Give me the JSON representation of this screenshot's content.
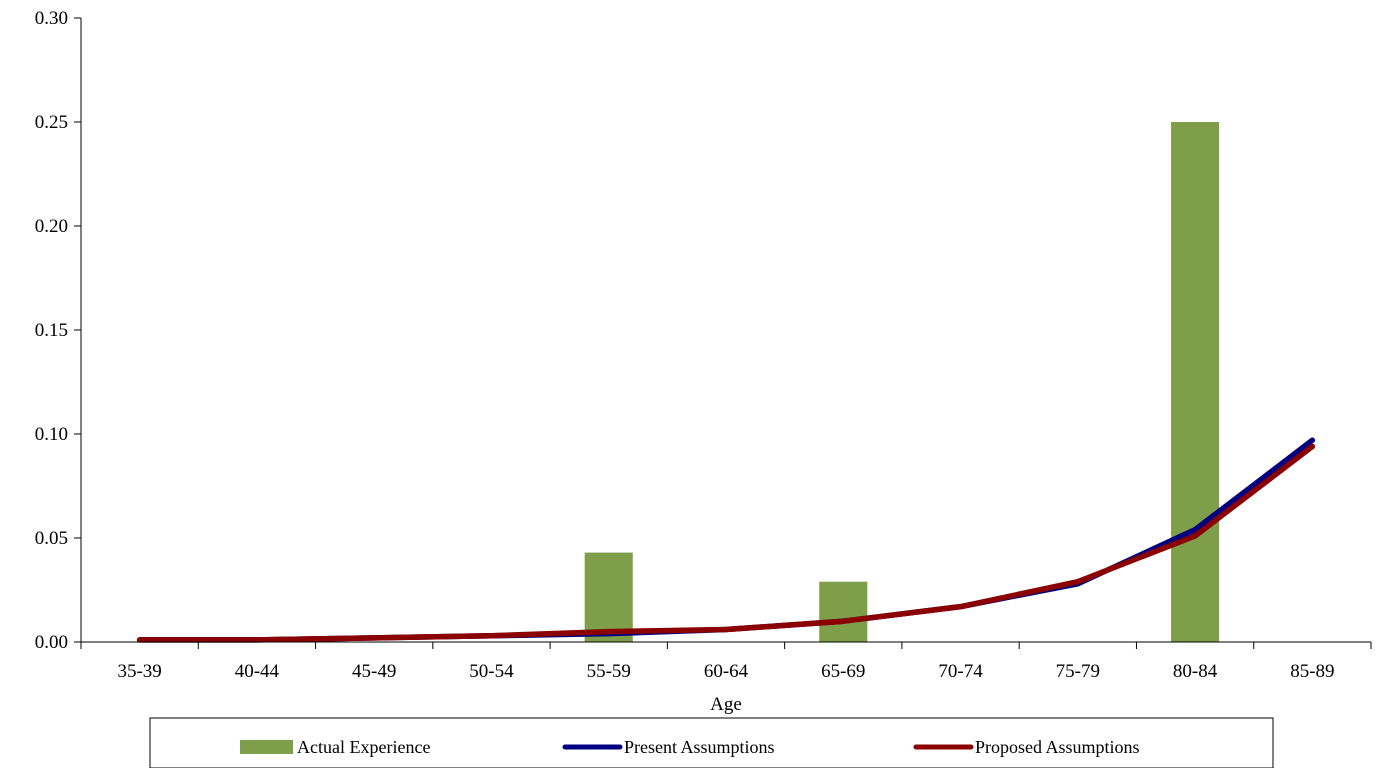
{
  "chart_data": {
    "type": "bar",
    "title": "",
    "xlabel": "Age",
    "ylabel": "",
    "categories": [
      "35-39",
      "40-44",
      "45-49",
      "50-54",
      "55-59",
      "60-64",
      "65-69",
      "70-74",
      "75-79",
      "80-84",
      "85-89"
    ],
    "ylim": [
      0,
      0.3
    ],
    "yticks": [
      "0.00",
      "0.05",
      "0.10",
      "0.15",
      "0.20",
      "0.25",
      "0.30"
    ],
    "grid": false,
    "legend_position": "bottom",
    "series": [
      {
        "name": "Actual Experience",
        "kind": "bar",
        "color": "#7f9e4a",
        "values": [
          0,
          0,
          0,
          0,
          0.043,
          0,
          0.029,
          0,
          0,
          0.25,
          0
        ]
      },
      {
        "name": "Present Assumptions",
        "kind": "line",
        "color": "#000080",
        "values": [
          0.001,
          0.001,
          0.002,
          0.003,
          0.004,
          0.006,
          0.01,
          0.017,
          0.028,
          0.054,
          0.097
        ]
      },
      {
        "name": "Proposed Assumptions",
        "kind": "line",
        "color": "#8b0000",
        "values": [
          0.001,
          0.001,
          0.002,
          0.003,
          0.005,
          0.006,
          0.01,
          0.017,
          0.029,
          0.051,
          0.094
        ]
      }
    ]
  }
}
